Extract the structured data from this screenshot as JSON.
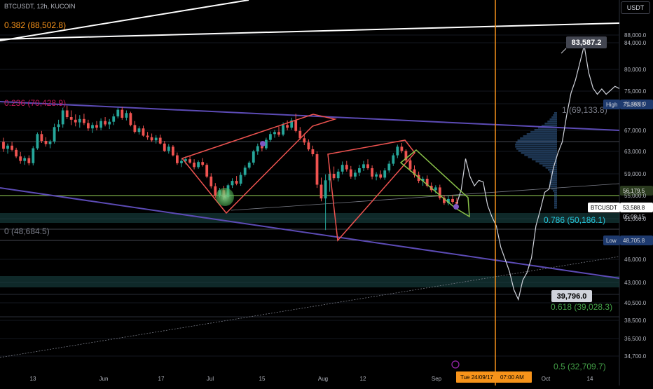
{
  "header": {
    "symbol_info": "BTCUSDT, 12h, KUCOIN",
    "currency": "USDT"
  },
  "chart_data": {
    "type": "candlestick",
    "symbol": "BTCUSDT",
    "interval": "12h",
    "exchange": "KUCOIN",
    "ylim": [
      34000,
      91000
    ],
    "price_ticks": [
      88000,
      84000,
      80000,
      75000,
      71000,
      67000,
      63000,
      59000,
      55000,
      51000,
      46000,
      43000,
      40500,
      38500,
      36500,
      34700
    ],
    "price_tick_labels": [
      "88,000.0",
      "84,000.0",
      "80,000.0",
      "75,000.0",
      "71,000.0",
      "67,000.0",
      "63,000.0",
      "59,000.0",
      "55,000.0",
      "51,000.0",
      "46,000.0",
      "43,000.0",
      "40,500.0",
      "38,500.0",
      "36,500.0",
      "34,700.0"
    ],
    "time_ticks": [
      "13",
      "Jun",
      "17",
      "Jul",
      "15",
      "Aug",
      "12",
      "Sep",
      "Oct",
      "14"
    ],
    "candles_ohlc": [
      [
        64800,
        65600,
        62900,
        63500
      ],
      [
        63500,
        64500,
        62600,
        64100
      ],
      [
        64100,
        64800,
        63000,
        63300
      ],
      [
        63300,
        63700,
        61800,
        62100
      ],
      [
        62100,
        62900,
        60800,
        61300
      ],
      [
        61300,
        62200,
        60600,
        61800
      ],
      [
        61800,
        62300,
        60500,
        60900
      ],
      [
        60900,
        64000,
        60500,
        63600
      ],
      [
        63600,
        66600,
        63300,
        66300
      ],
      [
        66300,
        66900,
        64600,
        65000
      ],
      [
        65000,
        65700,
        63900,
        64400
      ],
      [
        64400,
        65200,
        63600,
        64900
      ],
      [
        64900,
        68000,
        64500,
        67500
      ],
      [
        67500,
        68600,
        66800,
        67900
      ],
      [
        67900,
        70400,
        67400,
        70000
      ],
      [
        70000,
        70700,
        68700,
        69000
      ],
      [
        69000,
        70000,
        67800,
        68600
      ],
      [
        68600,
        69400,
        67600,
        68200
      ],
      [
        68200,
        69300,
        67400,
        68700
      ],
      [
        68700,
        69500,
        67800,
        68100
      ],
      [
        68100,
        68600,
        66900,
        67300
      ],
      [
        67300,
        68200,
        66500,
        67800
      ],
      [
        67800,
        68400,
        67000,
        67400
      ],
      [
        67400,
        68800,
        67000,
        68400
      ],
      [
        68400,
        69000,
        67600,
        67900
      ],
      [
        67900,
        68700,
        67200,
        68300
      ],
      [
        68300,
        69500,
        67800,
        69100
      ],
      [
        69100,
        70400,
        68800,
        70100
      ],
      [
        70100,
        70500,
        68600,
        68900
      ],
      [
        68900,
        70000,
        68500,
        69600
      ],
      [
        69600,
        69800,
        67600,
        67800
      ],
      [
        67800,
        68400,
        66400,
        66700
      ],
      [
        66700,
        67600,
        66200,
        67300
      ],
      [
        67300,
        67700,
        65800,
        66000
      ],
      [
        66000,
        66700,
        65200,
        65700
      ],
      [
        65700,
        66400,
        64800,
        65100
      ],
      [
        65100,
        66100,
        64500,
        65600
      ],
      [
        65600,
        66200,
        64300,
        64500
      ],
      [
        64500,
        65000,
        62900,
        63100
      ],
      [
        63100,
        64400,
        62600,
        63900
      ],
      [
        63900,
        64200,
        62100,
        62300
      ],
      [
        62300,
        62800,
        60600,
        60900
      ],
      [
        60900,
        61700,
        60200,
        61300
      ],
      [
        61300,
        62100,
        60700,
        61600
      ],
      [
        61600,
        62300,
        60800,
        61000
      ],
      [
        61000,
        61600,
        59800,
        60200
      ],
      [
        60200,
        61400,
        59900,
        61100
      ],
      [
        61100,
        61800,
        60300,
        60600
      ],
      [
        60600,
        60900,
        58200,
        58500
      ],
      [
        58500,
        59100,
        56300,
        56700
      ],
      [
        56700,
        57300,
        54600,
        55000
      ],
      [
        55000,
        56400,
        54700,
        56000
      ],
      [
        56000,
        56800,
        54300,
        54800
      ],
      [
        54800,
        57200,
        54500,
        56900
      ],
      [
        56900,
        58200,
        56400,
        57700
      ],
      [
        57700,
        58600,
        56900,
        57200
      ],
      [
        57200,
        59300,
        56800,
        58800
      ],
      [
        58800,
        60500,
        58500,
        60100
      ],
      [
        60100,
        61300,
        59800,
        61000
      ],
      [
        61000,
        63300,
        60600,
        63000
      ],
      [
        63000,
        64500,
        62400,
        64000
      ],
      [
        64000,
        64900,
        63000,
        63600
      ],
      [
        63600,
        65600,
        63300,
        65200
      ],
      [
        65200,
        66800,
        64800,
        66300
      ],
      [
        66300,
        67100,
        65600,
        66700
      ],
      [
        66700,
        67600,
        65800,
        66200
      ],
      [
        66200,
        68200,
        65900,
        67800
      ],
      [
        67800,
        68500,
        67000,
        67400
      ],
      [
        67400,
        68900,
        67100,
        68500
      ],
      [
        68500,
        69500,
        66600,
        66900
      ],
      [
        66900,
        67500,
        65200,
        65500
      ],
      [
        65500,
        66400,
        64200,
        64700
      ],
      [
        64700,
        65300,
        63100,
        63400
      ],
      [
        63400,
        64100,
        62100,
        62500
      ],
      [
        62500,
        63000,
        56400,
        57000
      ],
      [
        57000,
        58300,
        54000,
        54500
      ],
      [
        54500,
        58900,
        49600,
        57800
      ],
      [
        57800,
        59500,
        55700,
        59000
      ],
      [
        59000,
        60300,
        57800,
        58200
      ],
      [
        58200,
        59900,
        57600,
        59400
      ],
      [
        59400,
        61200,
        58900,
        60600
      ],
      [
        60600,
        61300,
        59400,
        59800
      ],
      [
        59800,
        60400,
        58100,
        58500
      ],
      [
        58500,
        59700,
        57900,
        59200
      ],
      [
        59200,
        60600,
        58600,
        60000
      ],
      [
        60000,
        61300,
        59500,
        60700
      ],
      [
        60700,
        61600,
        59700,
        60000
      ],
      [
        60000,
        60500,
        58000,
        58500
      ],
      [
        58500,
        59300,
        57800,
        58900
      ],
      [
        58900,
        59600,
        58000,
        58300
      ],
      [
        58300,
        60000,
        57900,
        59600
      ],
      [
        59600,
        61300,
        59200,
        60800
      ],
      [
        60800,
        62700,
        60400,
        62300
      ],
      [
        62300,
        64300,
        61800,
        63900
      ],
      [
        63900,
        64600,
        62700,
        63100
      ],
      [
        63100,
        63400,
        61000,
        61400
      ],
      [
        61400,
        61700,
        59400,
        59800
      ],
      [
        59800,
        60500,
        58300,
        58800
      ],
      [
        58800,
        59400,
        57300,
        57700
      ],
      [
        57700,
        58500,
        56800,
        58100
      ],
      [
        58100,
        58700,
        56500,
        56800
      ],
      [
        56800,
        57400,
        55600,
        56000
      ],
      [
        56000,
        56900,
        55400,
        56500
      ],
      [
        56500,
        57000,
        54300,
        54600
      ],
      [
        54600,
        55100,
        53400,
        53700
      ],
      [
        53700,
        54900,
        53300,
        54400
      ],
      [
        54400,
        55100,
        53600,
        53900
      ],
      [
        53900,
        54600,
        53300,
        53590
      ]
    ],
    "series": [
      {
        "name": "BTCUSDT",
        "values": [
          64800,
          64200,
          63000,
          61500,
          61000,
          60500,
          61400,
          63800,
          65900,
          64800,
          66800,
          69500,
          68700,
          68000,
          67800,
          68500,
          69800,
          68700,
          66200,
          64700,
          62900,
          61500,
          59600,
          55700,
          55800,
          58000,
          63100,
          66000,
          66700,
          67200,
          66500,
          64700,
          59000,
          57800,
          58500,
          60100,
          59000,
          58200,
          57500,
          60000,
          59900,
          58100,
          56300,
          53590
        ]
      },
      {
        "name": "projection",
        "values": [
          53590,
          56100,
          61700,
          58500,
          56800,
          57800,
          57500,
          53300,
          51300,
          50100,
          47500,
          46000,
          44400,
          42100,
          40900,
          43300,
          44300,
          46200,
          50100,
          52500,
          55600,
          56200,
          60100,
          62700,
          64800,
          69300,
          74400,
          77500,
          81000,
          83600,
          79300,
          75700,
          74000,
          75500,
          74000,
          75200,
          76100,
          75600
        ]
      }
    ],
    "annotations": {
      "fib_levels": [
        {
          "label": "0.382 (88,502.8)",
          "value": 88502.8
        },
        {
          "label": "0.236 (70,428.9)",
          "value": 70428.9
        },
        {
          "label": "0 (48,684.5)",
          "value": 48684.5
        },
        {
          "label": "1 (69,133.8)",
          "value": 69133.8
        },
        {
          "label": "0.786 (50,186.1)",
          "value": 50186.1
        },
        {
          "label": "0.618 (39,028.3)",
          "value": 39028.3
        },
        {
          "label": "0.5 (32,709.7)",
          "value": 32709.7
        }
      ],
      "projection_high": "83,587.2",
      "projection_low": "39,796.0",
      "vertical_date": "Tue 24/09/17",
      "vertical_time": "07:00 AM",
      "countdown": "05:08:15"
    },
    "axis_tags": {
      "high_label": "High",
      "high_value": "71,993.5",
      "resistance_value": "56,179.5",
      "current_symbol": "BTCUSDT",
      "current_value": "53,588.8",
      "low_label": "Low",
      "low_value": "48,705.8"
    },
    "colors": {
      "up": "#26a69a",
      "down": "#ef5350",
      "background": "#000000",
      "fib_382": "#f7931a",
      "fib_236": "#c2185b",
      "fib_0": "#787b86",
      "fib_786": "#26c6da",
      "fib_618": "#43a047",
      "vertical_line": "#f7931a",
      "channel": "#5c4bb5",
      "wedge": "#ef5350",
      "flag": "#8bc34a",
      "high_tag": "#1e3a6e",
      "low_tag": "#1e3a6e"
    }
  }
}
